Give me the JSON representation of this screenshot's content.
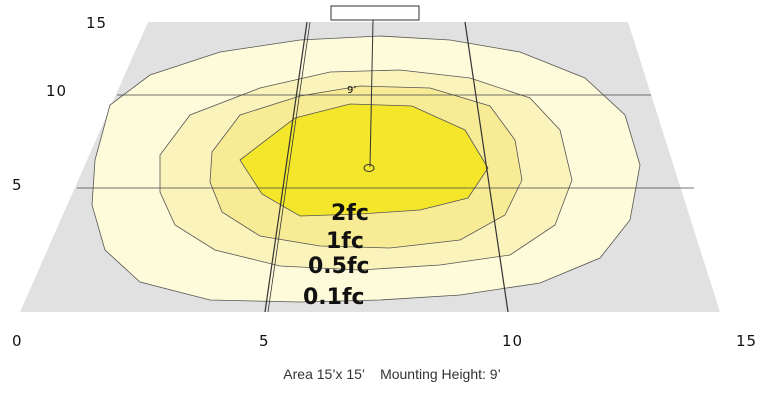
{
  "diagram": {
    "x_axis_labels": [
      "0",
      "5",
      "10",
      "15"
    ],
    "y_axis_labels": [
      "15",
      "10",
      "5"
    ],
    "mount_height_label": "9’",
    "contour_labels": [
      "2fc",
      "1fc",
      "0.5fc",
      "0.1fc"
    ],
    "colors": {
      "floor": "#e1e1e1",
      "contour_0_1fc": "#fdfbd9",
      "contour_0_5fc": "#fbf3bc",
      "contour_1fc": "#f8eb96",
      "contour_2fc": "#f3e62b",
      "lines": "#333333"
    }
  },
  "caption": {
    "area": "Area 15’x 15’",
    "mounting_height": "Mounting Height: 9’"
  }
}
